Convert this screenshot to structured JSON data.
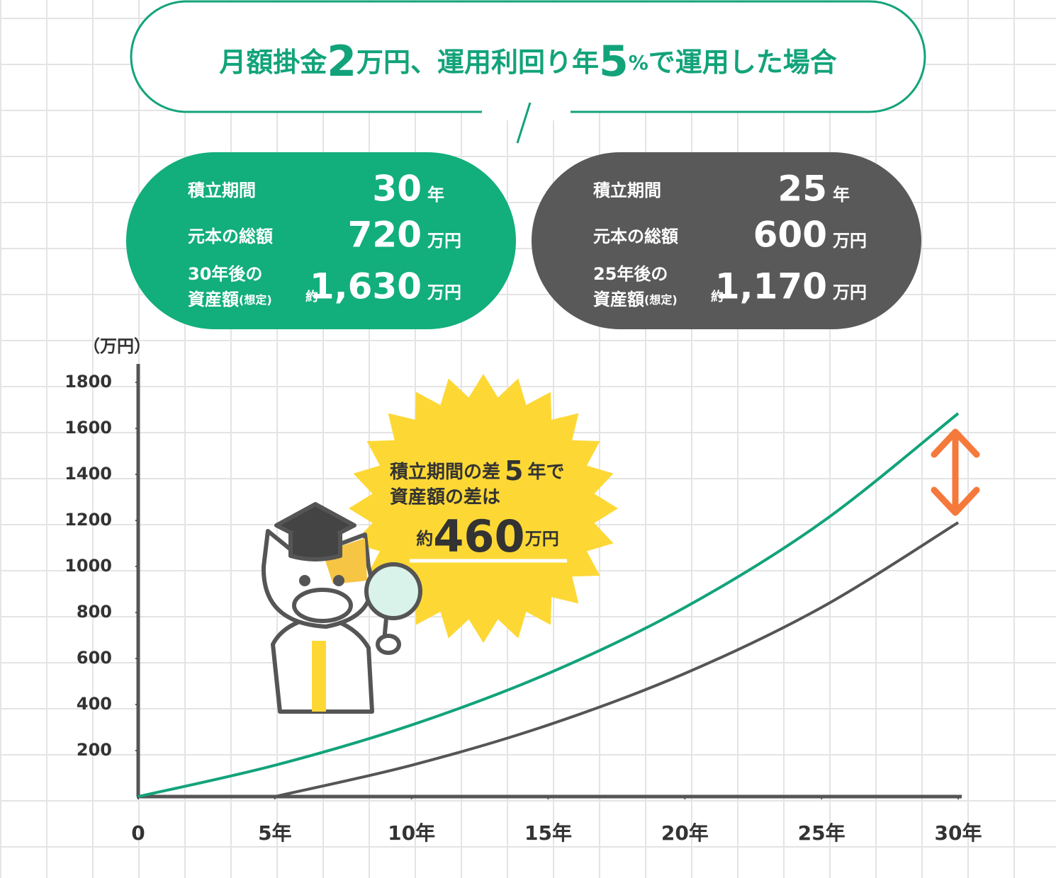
{
  "header": {
    "title_parts": [
      "月額掛金",
      "2",
      "万円、運用利回り年",
      "5",
      "%",
      "で運用した場合"
    ]
  },
  "cards": [
    {
      "rows": [
        {
          "label": "積立期間",
          "value": "30",
          "unit": "年"
        },
        {
          "label": "元本の総額",
          "value": "720",
          "unit": "万円"
        },
        {
          "label_lines": [
            "30年後の",
            "資産額"
          ],
          "label_note": "(想定)",
          "prefix": "約",
          "value": "1,630",
          "unit": "万円"
        }
      ]
    },
    {
      "rows": [
        {
          "label": "積立期間",
          "value": "25",
          "unit": "年"
        },
        {
          "label": "元本の総額",
          "value": "600",
          "unit": "万円"
        },
        {
          "label_lines": [
            "25年後の",
            "資産額"
          ],
          "label_note": "(想定)",
          "prefix": "約",
          "value": "1,170",
          "unit": "万円"
        }
      ]
    }
  ],
  "chart_data": {
    "type": "line",
    "y_unit": "（万円）",
    "x": [
      0,
      5,
      10,
      15,
      20,
      25,
      30
    ],
    "xlim": [
      0,
      30
    ],
    "xticks": [
      0,
      {
        "value": 5,
        "label": "5年"
      },
      {
        "value": 10,
        "label": "10年"
      },
      {
        "value": 15,
        "label": "15年"
      },
      {
        "value": 20,
        "label": "20年"
      },
      {
        "value": 25,
        "label": "25年"
      },
      {
        "value": 30,
        "label": "30年"
      }
    ],
    "ylim": [
      0,
      1880
    ],
    "yticks": [
      200,
      400,
      600,
      800,
      1000,
      1200,
      1400,
      1600,
      1800
    ],
    "series": [
      {
        "color": "#12a37a",
        "values": [
          0,
          136,
          311,
          535,
          822,
          1191,
          1665
        ]
      },
      {
        "color": "#555555",
        "values": [
          null,
          0,
          136,
          311,
          535,
          822,
          1191
        ]
      }
    ],
    "annotation": {
      "line1": [
        "積立期間の差",
        "5",
        "年で"
      ],
      "line2": "資産額の差は",
      "line3": [
        "約",
        "460",
        "万円"
      ]
    }
  }
}
